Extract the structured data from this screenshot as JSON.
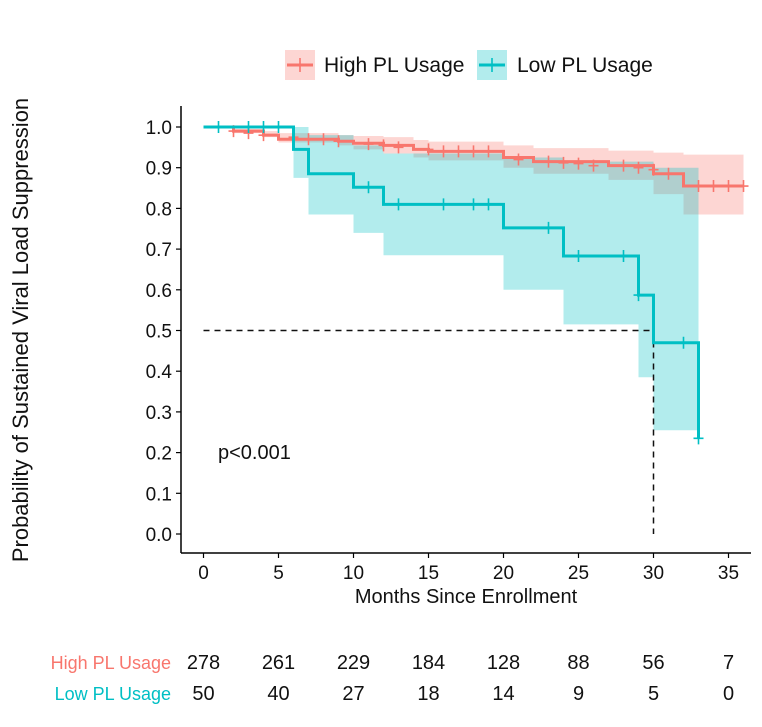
{
  "chart_data": {
    "type": "line",
    "subtype": "kaplan-meier",
    "title": "",
    "xlabel": "Months Since Enrollment",
    "ylabel": "Probability of Sustained Viral Load Suppression",
    "xlim": [
      -1.5,
      36.5
    ],
    "ylim": [
      0.0,
      1.0
    ],
    "x_ticks": [
      0,
      5,
      10,
      15,
      20,
      25,
      30,
      35
    ],
    "x_tick_labels": [
      "0",
      "5",
      "10",
      "15",
      "20",
      "25",
      "30",
      "35"
    ],
    "y_ticks": [
      0.0,
      0.1,
      0.2,
      0.3,
      0.4,
      0.5,
      0.6,
      0.7,
      0.8,
      0.9,
      1.0
    ],
    "y_tick_labels": [
      "0.0",
      "0.1",
      "0.2",
      "0.3",
      "0.4",
      "0.5",
      "0.6",
      "0.7",
      "0.8",
      "0.9",
      "1.0"
    ],
    "grid": false,
    "legend_position": "top",
    "annotation": "p<0.001",
    "median_line": {
      "y": 0.5,
      "x": 30
    },
    "series": [
      {
        "name": "High PL Usage",
        "color": "#F8766D",
        "band_color": "#F8766D",
        "steps": [
          [
            0,
            1.0
          ],
          [
            2,
            0.99
          ],
          [
            4,
            0.98
          ],
          [
            5,
            0.97
          ],
          [
            9,
            0.965
          ],
          [
            10,
            0.96
          ],
          [
            12,
            0.955
          ],
          [
            14,
            0.945
          ],
          [
            15,
            0.94
          ],
          [
            20,
            0.925
          ],
          [
            22,
            0.915
          ],
          [
            27,
            0.905
          ],
          [
            30,
            0.885
          ],
          [
            32,
            0.855
          ],
          [
            36,
            0.855
          ]
        ],
        "lower": [
          [
            0,
            1.0
          ],
          [
            2,
            0.985
          ],
          [
            4,
            0.975
          ],
          [
            5,
            0.962
          ],
          [
            9,
            0.955
          ],
          [
            10,
            0.945
          ],
          [
            12,
            0.935
          ],
          [
            14,
            0.925
          ],
          [
            15,
            0.918
          ],
          [
            20,
            0.9
          ],
          [
            22,
            0.885
          ],
          [
            27,
            0.87
          ],
          [
            30,
            0.835
          ],
          [
            32,
            0.785
          ],
          [
            36,
            0.785
          ]
        ],
        "upper": [
          [
            0,
            1.0
          ],
          [
            2,
            0.995
          ],
          [
            4,
            0.99
          ],
          [
            5,
            0.985
          ],
          [
            9,
            0.98
          ],
          [
            10,
            0.978
          ],
          [
            12,
            0.975
          ],
          [
            14,
            0.968
          ],
          [
            15,
            0.964
          ],
          [
            20,
            0.955
          ],
          [
            22,
            0.948
          ],
          [
            27,
            0.942
          ],
          [
            30,
            0.937
          ],
          [
            32,
            0.932
          ],
          [
            36,
            0.932
          ]
        ],
        "censors": [
          [
            2,
            0.99
          ],
          [
            3,
            0.985
          ],
          [
            4,
            0.98
          ],
          [
            6,
            0.975
          ],
          [
            7,
            0.97
          ],
          [
            8,
            0.97
          ],
          [
            9,
            0.965
          ],
          [
            11,
            0.958
          ],
          [
            12,
            0.955
          ],
          [
            13,
            0.95
          ],
          [
            15,
            0.945
          ],
          [
            16,
            0.94
          ],
          [
            17,
            0.94
          ],
          [
            18,
            0.94
          ],
          [
            19,
            0.94
          ],
          [
            21,
            0.92
          ],
          [
            23,
            0.915
          ],
          [
            24,
            0.912
          ],
          [
            25,
            0.91
          ],
          [
            26,
            0.905
          ],
          [
            28,
            0.905
          ],
          [
            29,
            0.9
          ],
          [
            30,
            0.895
          ],
          [
            31,
            0.885
          ],
          [
            33,
            0.855
          ],
          [
            34,
            0.855
          ],
          [
            35,
            0.855
          ],
          [
            36,
            0.855
          ]
        ]
      },
      {
        "name": "Low PL Usage",
        "color": "#00BFC4",
        "band_color": "#00BFC4",
        "steps": [
          [
            0,
            1.0
          ],
          [
            6,
            0.945
          ],
          [
            7,
            0.885
          ],
          [
            10,
            0.852
          ],
          [
            12,
            0.81
          ],
          [
            20,
            0.752
          ],
          [
            24,
            0.683
          ],
          [
            29,
            0.587
          ],
          [
            30,
            0.47
          ],
          [
            33,
            0.235
          ],
          [
            33,
            0.235
          ]
        ],
        "lower": [
          [
            0,
            1.0
          ],
          [
            6,
            0.875
          ],
          [
            7,
            0.785
          ],
          [
            10,
            0.74
          ],
          [
            12,
            0.685
          ],
          [
            20,
            0.6
          ],
          [
            24,
            0.515
          ],
          [
            29,
            0.385
          ],
          [
            30,
            0.255
          ],
          [
            33,
            0.255
          ]
        ],
        "upper": [
          [
            0,
            1.0
          ],
          [
            6,
            1.0
          ],
          [
            7,
            0.98
          ],
          [
            10,
            0.955
          ],
          [
            12,
            0.935
          ],
          [
            20,
            0.925
          ],
          [
            24,
            0.915
          ],
          [
            29,
            0.915
          ],
          [
            30,
            0.9
          ],
          [
            33,
            0.9
          ]
        ],
        "censors": [
          [
            1,
            1.0
          ],
          [
            3,
            1.0
          ],
          [
            4,
            1.0
          ],
          [
            5,
            1.0
          ],
          [
            11,
            0.852
          ],
          [
            13,
            0.81
          ],
          [
            16,
            0.81
          ],
          [
            18,
            0.81
          ],
          [
            19,
            0.81
          ],
          [
            23,
            0.752
          ],
          [
            25,
            0.683
          ],
          [
            28,
            0.683
          ],
          [
            29,
            0.587
          ],
          [
            32,
            0.47
          ],
          [
            33,
            0.235
          ]
        ]
      }
    ]
  },
  "risk_table": {
    "times": [
      "0",
      "5",
      "10",
      "15",
      "20",
      "25",
      "30",
      "35"
    ],
    "rows": [
      {
        "label": "High PL Usage",
        "color": "#F8766D",
        "counts": [
          "278",
          "261",
          "229",
          "184",
          "128",
          "88",
          "56",
          "7"
        ]
      },
      {
        "label": "Low PL Usage",
        "color": "#00BFC4",
        "counts": [
          "50",
          "40",
          "27",
          "18",
          "14",
          "9",
          "5",
          "0"
        ]
      }
    ],
    "x_values": [
      0,
      5,
      10,
      15,
      20,
      25,
      30,
      35
    ]
  }
}
